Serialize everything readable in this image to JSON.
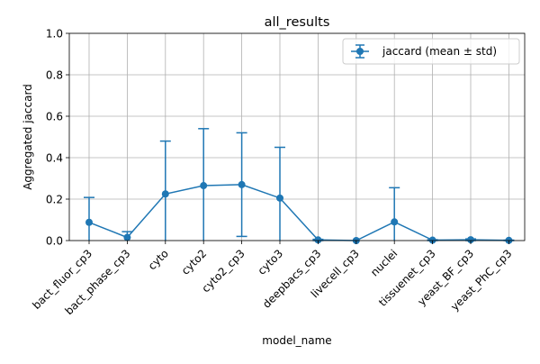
{
  "chart_data": {
    "type": "line",
    "title": "all_results",
    "xlabel": "model_name",
    "ylabel": "Aggregated jaccard",
    "ylim": [
      0,
      1
    ],
    "yticks": [
      "0.0",
      "0.2",
      "0.4",
      "0.6",
      "0.8",
      "1.0"
    ],
    "grid": true,
    "legend_position": "top-right",
    "categories": [
      "bact_fluor_cp3",
      "bact_phase_cp3",
      "cyto",
      "cyto2",
      "cyto2_cp3",
      "cyto3",
      "deepbacs_cp3",
      "livecell_cp3",
      "nuclei",
      "tissuenet_cp3",
      "yeast_BF_cp3",
      "yeast_PhC_cp3"
    ],
    "series": [
      {
        "name": "jaccard (mean ± std)",
        "color": "#1f77b4",
        "marker": "circle",
        "error_bars": true,
        "values": [
          0.088,
          0.015,
          0.225,
          0.265,
          0.27,
          0.205,
          0.003,
          0.0,
          0.09,
          0.002,
          0.004,
          0.001
        ],
        "std": [
          0.12,
          0.028,
          0.255,
          0.275,
          0.25,
          0.245,
          0.003,
          0.0,
          0.165,
          0.002,
          0.004,
          0.001
        ]
      }
    ]
  }
}
